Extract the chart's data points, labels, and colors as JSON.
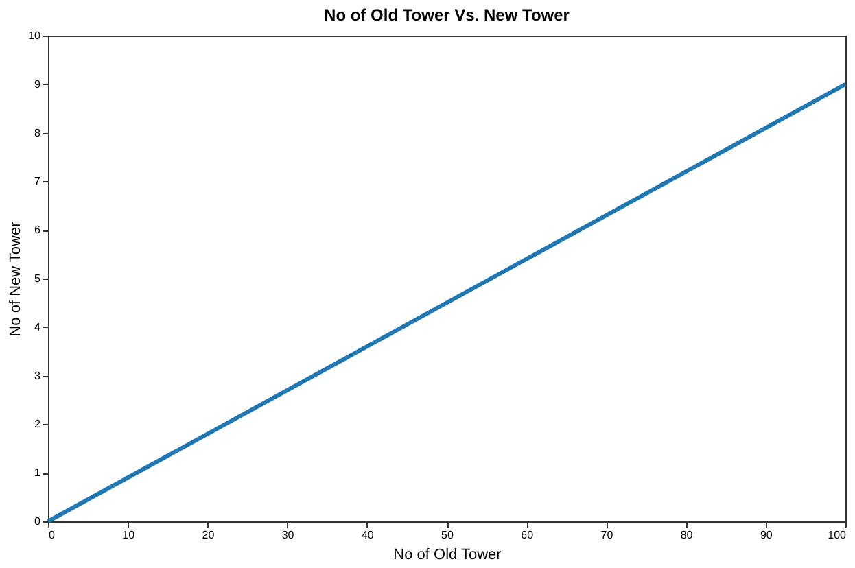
{
  "chart_data": {
    "type": "line",
    "title": "No of Old Tower Vs. New Tower",
    "xlabel": "No of Old Tower",
    "ylabel": "No of New Tower",
    "x": [
      0,
      100
    ],
    "series": [
      {
        "color": "#1f77b4",
        "values": [
          0,
          9
        ]
      }
    ],
    "xlim": [
      0,
      100
    ],
    "xticks": [
      0,
      10,
      20,
      30,
      40,
      50,
      60,
      70,
      80,
      90,
      100
    ],
    "ylim": [
      0,
      10
    ],
    "yticks": [
      0,
      1,
      2,
      3,
      4,
      5,
      6,
      7,
      8,
      9,
      10
    ],
    "grid": false,
    "legend": false,
    "marker": "none",
    "line_style": "solid"
  }
}
